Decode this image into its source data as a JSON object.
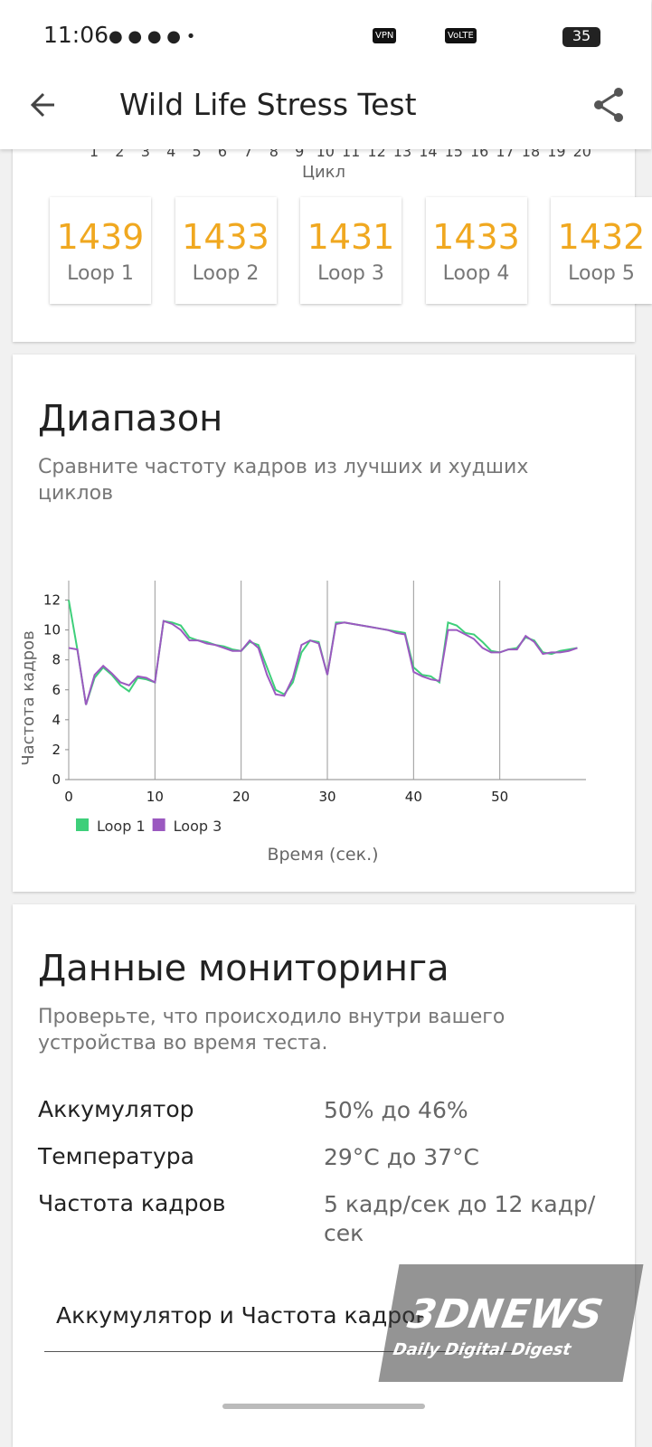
{
  "status_bar": {
    "time": "11:06",
    "icons": [
      "VPN",
      "VoLTE"
    ],
    "battery": "35"
  },
  "app_bar": {
    "title": "Wild Life Stress Test"
  },
  "loop_axis": {
    "ticks": [
      1,
      2,
      3,
      4,
      5,
      6,
      7,
      8,
      9,
      10,
      11,
      12,
      13,
      14,
      15,
      16,
      17,
      18,
      19,
      20
    ],
    "label": "Цикл"
  },
  "loops": [
    {
      "score": 1439,
      "label": "Loop 1"
    },
    {
      "score": 1433,
      "label": "Loop 2"
    },
    {
      "score": 1431,
      "label": "Loop 3"
    },
    {
      "score": 1433,
      "label": "Loop 4"
    },
    {
      "score": 1432,
      "label": "Loop 5"
    }
  ],
  "range": {
    "title": "Диапазон",
    "subtitle": "Сравните частоту кадров из лучших и худших циклов",
    "chart": {
      "type": "line",
      "ylabel": "Частота кадров",
      "xlabel": "Время (сек.)",
      "x": [
        0,
        1,
        2,
        3,
        4,
        5,
        6,
        7,
        8,
        9,
        10,
        11,
        12,
        13,
        14,
        15,
        16,
        17,
        18,
        19,
        20,
        21,
        22,
        23,
        24,
        25,
        26,
        27,
        28,
        29,
        30,
        31,
        32,
        33,
        34,
        35,
        36,
        37,
        38,
        39,
        40,
        41,
        42,
        43,
        44,
        45,
        46,
        47,
        48,
        49,
        50,
        51,
        52,
        53,
        54,
        55,
        56,
        57,
        58,
        59
      ],
      "xlim": [
        0,
        60
      ],
      "ylim": [
        0,
        13.3
      ],
      "xticks": [
        0,
        10,
        20,
        30,
        40,
        50
      ],
      "yticks": [
        0,
        2,
        4,
        6,
        8,
        10,
        12
      ],
      "grid": "x",
      "legend": "bottom-left",
      "series": [
        {
          "name": "Loop 1",
          "color": "#3ecf7a",
          "values": [
            12.0,
            8.7,
            5.0,
            6.8,
            7.5,
            7.0,
            6.3,
            5.9,
            6.8,
            6.7,
            6.5,
            10.6,
            10.5,
            10.3,
            9.5,
            9.3,
            9.2,
            9.0,
            8.9,
            8.7,
            8.6,
            9.2,
            9.0,
            7.5,
            6.0,
            5.7,
            6.5,
            8.5,
            9.3,
            9.2,
            7.0,
            10.5,
            10.5,
            10.4,
            10.3,
            10.2,
            10.1,
            10.0,
            9.9,
            9.8,
            7.5,
            7.0,
            6.9,
            6.5,
            10.5,
            10.3,
            9.8,
            9.7,
            9.2,
            8.6,
            8.5,
            8.7,
            8.8,
            9.5,
            9.3,
            8.5,
            8.4,
            8.6,
            8.7,
            8.8
          ]
        },
        {
          "name": "Loop 3",
          "color": "#9b59c0",
          "values": [
            8.8,
            8.7,
            5.0,
            7.0,
            7.6,
            7.1,
            6.5,
            6.3,
            6.9,
            6.8,
            6.5,
            10.6,
            10.4,
            10.0,
            9.3,
            9.3,
            9.1,
            9.0,
            8.8,
            8.6,
            8.6,
            9.3,
            8.8,
            7.0,
            5.7,
            5.6,
            6.8,
            9.0,
            9.3,
            9.1,
            7.0,
            10.4,
            10.5,
            10.4,
            10.3,
            10.2,
            10.1,
            10.0,
            9.8,
            9.7,
            7.2,
            6.9,
            6.7,
            6.6,
            10.0,
            10.0,
            9.7,
            9.4,
            8.8,
            8.5,
            8.5,
            8.7,
            8.7,
            9.6,
            9.2,
            8.4,
            8.5,
            8.5,
            8.6,
            8.8
          ]
        }
      ]
    }
  },
  "monitoring": {
    "title": "Данные мониторинга",
    "subtitle": "Проверьте, что происходило внутри вашего устройства во время теста.",
    "rows": [
      [
        "Аккумулятор",
        "50% до 46%"
      ],
      [
        "Температура",
        "29°C до 37°C"
      ],
      [
        "Частота кадров",
        "5 кадр/сек до 12 кадр/сек"
      ]
    ],
    "dropdown": "Аккумулятор и Частота кадров"
  },
  "watermark": {
    "brand": "3DNEWS",
    "tagline": "Daily Digital Digest"
  }
}
